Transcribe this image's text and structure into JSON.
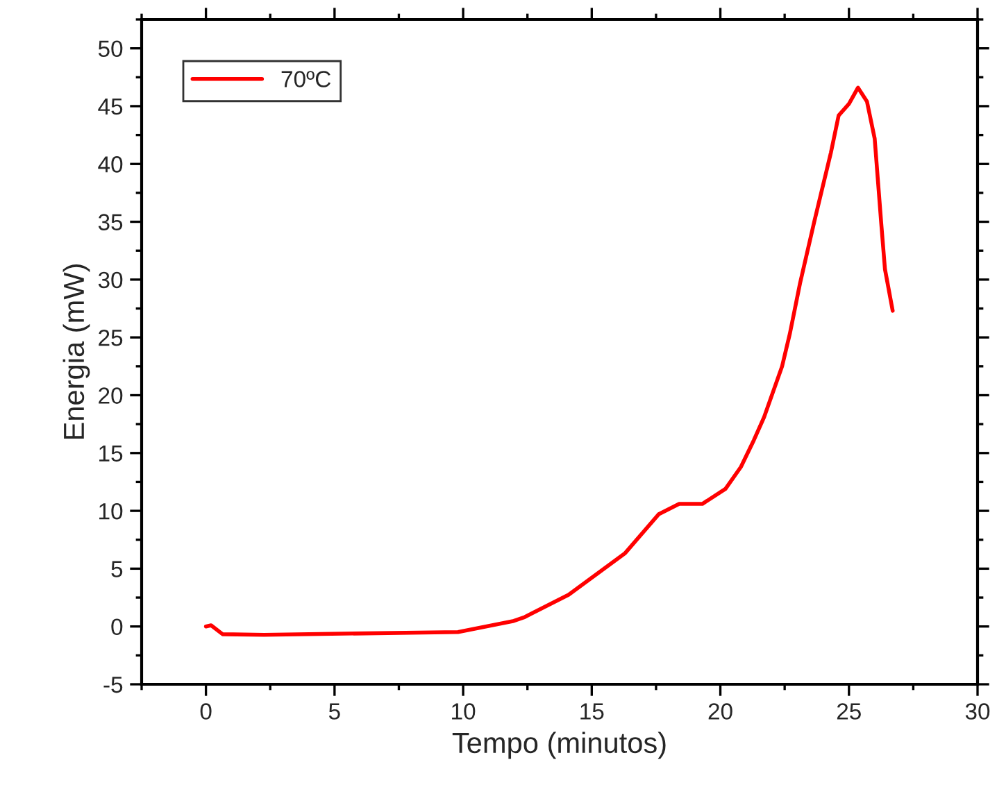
{
  "chart_data": {
    "type": "line",
    "xlabel": "Tempo (minutos)",
    "ylabel": "Energia (mW)",
    "xlim": [
      -2.5,
      30
    ],
    "ylim": [
      -5,
      52.5
    ],
    "xticks": [
      0,
      5,
      10,
      15,
      20,
      25,
      30
    ],
    "yticks": [
      -5,
      0,
      5,
      10,
      15,
      20,
      25,
      30,
      35,
      40,
      45,
      50
    ],
    "legend": "top left",
    "grid": false,
    "series": [
      {
        "name": "70ºC",
        "color": "#ff0000",
        "x": [
          0,
          0.2,
          0.65,
          2.26,
          9.8,
          11.97,
          12.4,
          14.1,
          16.3,
          17.6,
          18.4,
          19.3,
          20.2,
          20.8,
          21.3,
          21.7,
          22.4,
          22.7,
          23.1,
          23.65,
          24.3,
          24.6,
          25.0,
          25.35,
          25.7,
          26.0,
          26.25,
          26.4,
          26.7
        ],
        "values": [
          0,
          0.1,
          -0.67,
          -0.72,
          -0.48,
          0.48,
          0.82,
          2.74,
          6.35,
          9.7,
          10.6,
          10.6,
          11.9,
          13.8,
          16.1,
          18.1,
          22.5,
          25.3,
          29.7,
          35.0,
          41.0,
          44.2,
          45.2,
          46.6,
          45.4,
          42.2,
          35.0,
          30.9,
          27.3
        ]
      }
    ]
  }
}
